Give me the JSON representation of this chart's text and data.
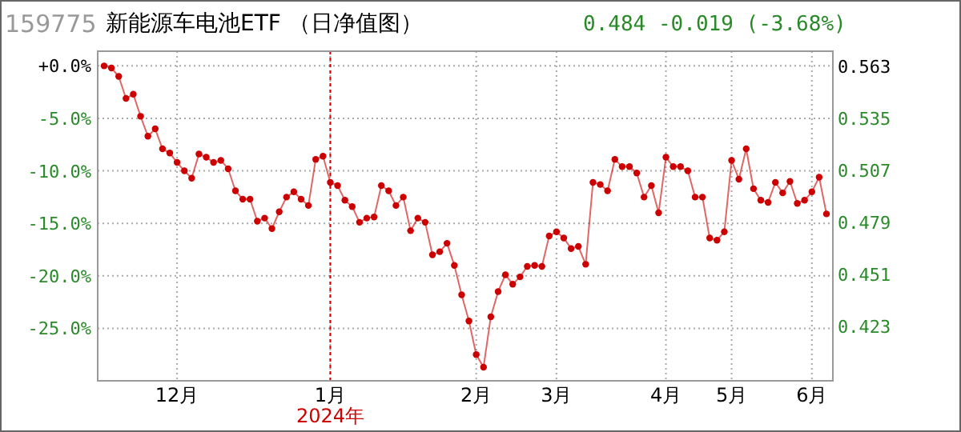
{
  "chart_data": {
    "type": "line",
    "title": "新能源车电池ETF （日净值图）",
    "subtitle": "0.484 -0.019 (-3.68%)",
    "annotations": [
      "159775"
    ],
    "categories": [
      null,
      null,
      null,
      null,
      null,
      null,
      null,
      null,
      null,
      null,
      "12月",
      null,
      null,
      null,
      null,
      null,
      null,
      null,
      null,
      null,
      null,
      null,
      null,
      null,
      null,
      null,
      null,
      null,
      null,
      null,
      null,
      "1月",
      null,
      null,
      null,
      null,
      null,
      null,
      null,
      null,
      null,
      null,
      null,
      null,
      null,
      null,
      null,
      null,
      null,
      null,
      null,
      "2月",
      null,
      null,
      null,
      null,
      null,
      null,
      null,
      null,
      null,
      null,
      "3月",
      null,
      null,
      null,
      null,
      null,
      null,
      null,
      null,
      null,
      null,
      null,
      null,
      null,
      null,
      "4月",
      null,
      null,
      null,
      null,
      null,
      null,
      null,
      null,
      "5月",
      null,
      null,
      null,
      null,
      null,
      null,
      null,
      null,
      null,
      null,
      "6月",
      null,
      null
    ],
    "series": [
      {
        "color": "#cc0000",
        "values": [
          0,
          -0.2,
          -1.0,
          -3.1,
          -2.7,
          -4.8,
          -6.7,
          -6.0,
          -7.9,
          -8.3,
          -9.2,
          -10.0,
          -10.7,
          -8.4,
          -8.7,
          -9.2,
          -9.0,
          -9.8,
          -11.9,
          -12.7,
          -12.7,
          -14.8,
          -14.5,
          -15.5,
          -13.9,
          -12.5,
          -12.0,
          -12.7,
          -13.3,
          -8.9,
          -8.6,
          -11.1,
          -11.4,
          -12.8,
          -13.4,
          -14.9,
          -14.5,
          -14.4,
          -11.4,
          -11.9,
          -13.3,
          -12.5,
          -15.7,
          -14.5,
          -14.9,
          -18.0,
          -17.7,
          -16.9,
          -19.0,
          -21.8,
          -24.3,
          -27.5,
          -28.7,
          -23.9,
          -21.5,
          -19.9,
          -20.8,
          -20.1,
          -19.1,
          -19.0,
          -19.1,
          -16.2,
          -15.8,
          -16.4,
          -17.4,
          -17.2,
          -18.9,
          -11.1,
          -11.3,
          -11.9,
          -8.9,
          -9.6,
          -9.6,
          -10.2,
          -12.5,
          -11.4,
          -14.0,
          -8.7,
          -9.6,
          -9.6,
          -10.0,
          -12.5,
          -12.5,
          -16.4,
          -16.6,
          -15.8,
          -9.0,
          -10.8,
          -7.9,
          -11.7,
          -12.8,
          -13.0,
          -11.1,
          -12.1,
          -11.0,
          -13.1,
          -12.8,
          -12.0,
          -10.6,
          -14.1
        ]
      }
    ],
    "ylim": [
      -30,
      1.4
    ],
    "yticks": [
      {
        "value": 0,
        "label": "+0.0%"
      },
      {
        "value": -5,
        "label": "-5.0%"
      },
      {
        "value": -10,
        "label": "-10.0%"
      },
      {
        "value": -15,
        "label": "-15.0%"
      },
      {
        "value": -20,
        "label": "-20.0%"
      },
      {
        "value": -25,
        "label": "-25.0%"
      }
    ],
    "y2lim": [
      0.394,
      0.571
    ],
    "y2ticks": [
      0.563,
      0.535,
      0.507,
      0.479,
      0.451,
      0.423
    ],
    "ref_lines": [
      {
        "axis": "x",
        "value": "1月",
        "label": "2024年",
        "color": "#cc0000",
        "line_style": "dotted"
      }
    ],
    "grid": true,
    "marker": "circle",
    "line_style": "solid"
  }
}
